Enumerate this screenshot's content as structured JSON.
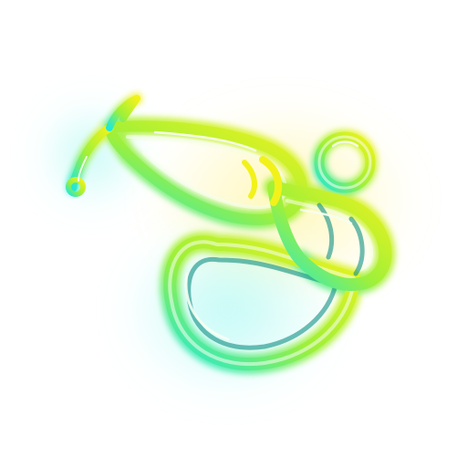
{
  "icon": {
    "name": "stethoscope-icon",
    "style": "neon-glow",
    "colors": {
      "background": "#ffffff",
      "cyan": "#20e8d8",
      "green": "#9ef03a",
      "yellow": "#f2f21a",
      "glow_yellow": "#fff27a",
      "glow_cyan": "#8ff7ef",
      "highlight": "#f7fff2",
      "shadow": "#0f8f84"
    }
  }
}
